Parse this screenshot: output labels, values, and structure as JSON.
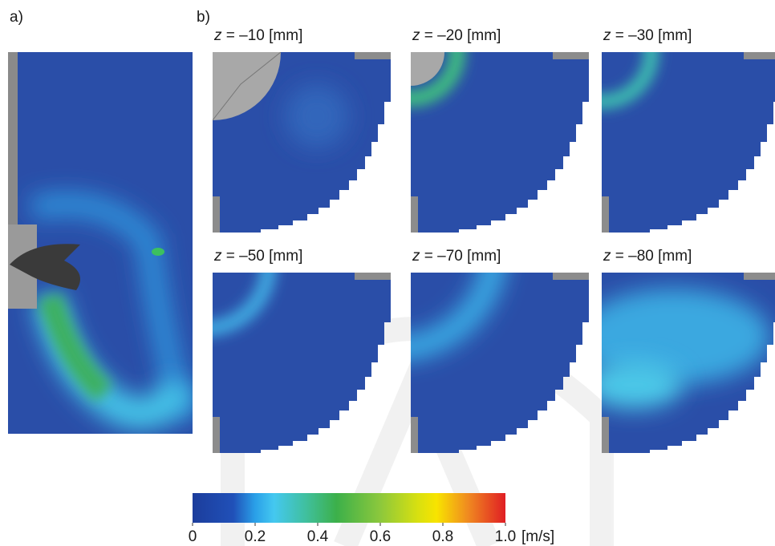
{
  "figure": {
    "panel_a_label": "a)",
    "panel_b_label": "b)",
    "slices": [
      {
        "variable": "z",
        "text": " = –10 [mm]"
      },
      {
        "variable": "z",
        "text": " = –20 [mm]"
      },
      {
        "variable": "z",
        "text": " = –30 [mm]"
      },
      {
        "variable": "z",
        "text": " = –50 [mm]"
      },
      {
        "variable": "z",
        "text": " = –70 [mm]"
      },
      {
        "variable": "z",
        "text": " = –80 [mm]"
      }
    ],
    "colorbar": {
      "range": [
        0,
        1
      ],
      "ticks": [
        0,
        0.2,
        0.4,
        0.6,
        0.8,
        {
          "value": 1,
          "label": "1.0"
        }
      ],
      "unit": "[m/s]"
    }
  }
}
